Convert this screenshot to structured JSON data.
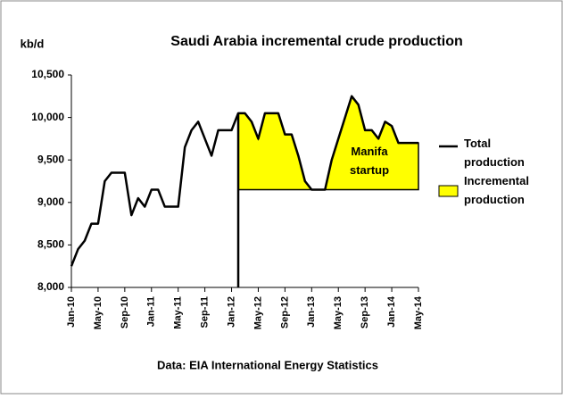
{
  "chart_data": {
    "type": "line",
    "title": "Saudi Arabia incremental crude production",
    "y_label": "kb/d",
    "source": "Data: EIA International Energy Statistics",
    "annotation": "Manifa startup",
    "categories": [
      "Jan-10",
      null,
      null,
      null,
      "May-10",
      null,
      null,
      null,
      "Sep-10",
      null,
      null,
      null,
      "Jan-11",
      null,
      null,
      null,
      "May-11",
      null,
      null,
      null,
      "Sep-11",
      null,
      null,
      null,
      "Jan-12",
      null,
      null,
      null,
      "May-12",
      null,
      null,
      null,
      "Sep-12",
      null,
      null,
      null,
      "Jan-13",
      null,
      null,
      null,
      "May-13",
      null,
      null,
      null,
      "Sep-13",
      null,
      null,
      null,
      "Jan-14",
      null,
      null,
      null,
      "May-14"
    ],
    "series": [
      {
        "name": "Total production",
        "color": "#000000",
        "values": [
          8250,
          8450,
          8550,
          8750,
          8750,
          9250,
          9350,
          9350,
          9350,
          8850,
          9050,
          8950,
          9150,
          9150,
          8950,
          8950,
          8950,
          9650,
          9850,
          9950,
          9750,
          9550,
          9850,
          9850,
          9850,
          10050,
          10050,
          9950,
          9750,
          10050,
          10050,
          10050,
          9800,
          9800,
          9550,
          9250,
          9150,
          9150,
          9150,
          9500,
          9750,
          10000,
          10250,
          10150,
          9850,
          9850,
          9750,
          9950,
          9900,
          9700,
          9700,
          9700,
          9700
        ]
      },
      {
        "name": "Incremental production",
        "color": "#ffff00",
        "type": "area",
        "baseline": 9150,
        "values": [
          null,
          null,
          null,
          null,
          null,
          null,
          null,
          null,
          null,
          null,
          null,
          null,
          null,
          null,
          null,
          null,
          null,
          null,
          null,
          null,
          null,
          null,
          null,
          null,
          null,
          10050,
          10050,
          9950,
          9750,
          10050,
          10050,
          10050,
          9800,
          9800,
          9550,
          9250,
          9150,
          9150,
          9150,
          9500,
          9750,
          10000,
          10250,
          10150,
          9850,
          9850,
          9750,
          9950,
          9900,
          9700,
          9700,
          9700,
          9700
        ]
      }
    ],
    "ylim": [
      8000,
      10500
    ],
    "yticks": [
      {
        "value": 8000,
        "label": "8,000"
      },
      {
        "value": 8500,
        "label": "8,500"
      },
      {
        "value": 9000,
        "label": "9,000"
      },
      {
        "value": 9500,
        "label": "9,500"
      },
      {
        "value": 10000,
        "label": "10,000"
      },
      {
        "value": 10500,
        "label": "10,500"
      }
    ],
    "grid": false,
    "legend": "right"
  }
}
